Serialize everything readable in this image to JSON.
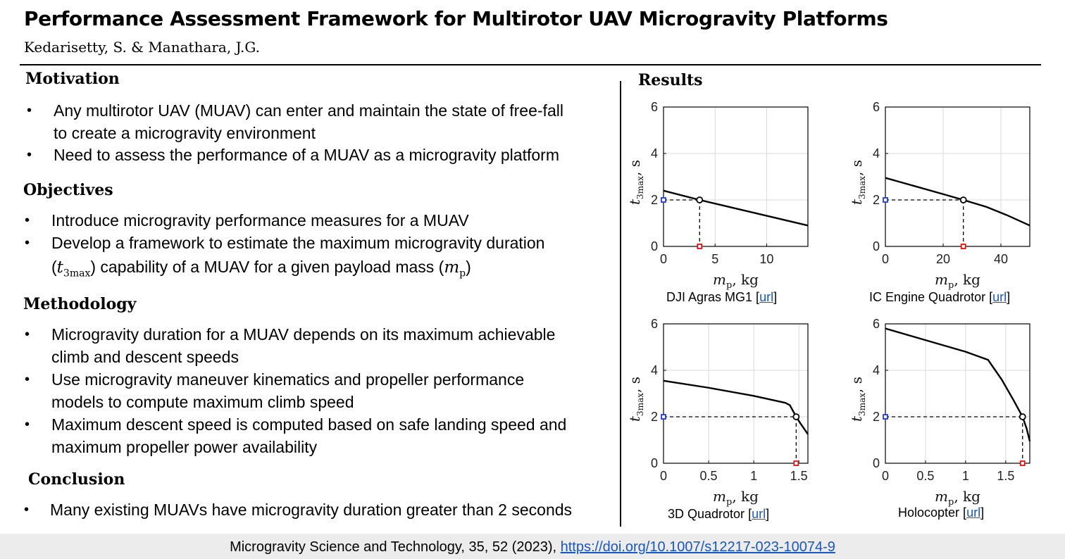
{
  "header": {
    "title": "Performance Assessment Framework for Multirotor UAV Microgravity Platforms",
    "authors": "Kedarisetty, S. & Manathara, J.G."
  },
  "motivation": {
    "heading": "Motivation",
    "bullets": [
      {
        "line1": "Any multirotor UAV (MUAV) can enter and maintain the state of free-fall",
        "line2": "to create a microgravity environment"
      },
      {
        "line1": "Need to assess the performance of a MUAV as a microgravity platform"
      }
    ]
  },
  "objectives": {
    "heading": "Objectives",
    "bullets": [
      {
        "line1": "Introduce microgravity performance measures for a MUAV"
      },
      {
        "line1": "Develop a framework to estimate the maximum microgravity duration",
        "line2_a": " capability of a MUAV for a given payload mass (",
        "line2_b": ")"
      }
    ]
  },
  "methodology": {
    "heading": "Methodology",
    "bullets": [
      {
        "line1": "Microgravity duration for a MUAV depends on its maximum achievable",
        "line2": "climb and descent speeds"
      },
      {
        "line1": "Use microgravity maneuver kinematics and propeller performance",
        "line2": "models to compute maximum climb speed"
      },
      {
        "line1": "Maximum descent speed is computed based on safe landing speed and",
        "line2": "maximum propeller power availability"
      }
    ]
  },
  "conclusion": {
    "heading": "Conclusion",
    "bullets": [
      {
        "line1": "Many existing MUAVs have microgravity duration greater than 2 seconds"
      }
    ]
  },
  "results": {
    "heading": "Results"
  },
  "bullet_glyph": "•",
  "math": {
    "t_sym": "t",
    "t_sub": "3max",
    "m_sym": "m",
    "m_sub": "p"
  },
  "chart_data": [
    {
      "type": "line",
      "caption": "DJI Agras MG1",
      "link_text": "url",
      "xlabel": "mp, kg",
      "ylabel": "t3max, s",
      "xlim": [
        0,
        14
      ],
      "ylim": [
        0,
        6
      ],
      "xticks": [
        0,
        5,
        10
      ],
      "yticks": [
        0,
        2,
        4,
        6
      ],
      "x": [
        0,
        3.5,
        14
      ],
      "y": [
        2.4,
        2.0,
        0.9
      ],
      "marker_x": 3.5,
      "marker_y": 2.0,
      "grid": true
    },
    {
      "type": "line",
      "caption": "IC Engine Quadrotor",
      "link_text": "url",
      "xlabel": "mp, kg",
      "ylabel": "t3max, s",
      "xlim": [
        0,
        50
      ],
      "ylim": [
        0,
        6
      ],
      "xticks": [
        0,
        20,
        40
      ],
      "yticks": [
        0,
        2,
        4,
        6
      ],
      "x": [
        0,
        10,
        20,
        27,
        35,
        42,
        50
      ],
      "y": [
        2.95,
        2.6,
        2.25,
        2.0,
        1.7,
        1.35,
        0.9
      ],
      "marker_x": 27,
      "marker_y": 2.0,
      "grid": true
    },
    {
      "type": "line",
      "caption": "3D Quadrotor",
      "link_text": "url",
      "xlabel": "mp, kg",
      "ylabel": "t3max, s",
      "xlim": [
        0,
        1.6
      ],
      "ylim": [
        0,
        6
      ],
      "xticks": [
        0,
        0.5,
        1,
        1.5
      ],
      "yticks": [
        0,
        2,
        4,
        6
      ],
      "x": [
        0,
        0.5,
        1.0,
        1.35,
        1.4,
        1.47,
        1.52,
        1.6
      ],
      "y": [
        3.55,
        3.25,
        2.9,
        2.6,
        2.5,
        2.0,
        1.7,
        1.25
      ],
      "marker_x": 1.47,
      "marker_y": 2.0,
      "grid": true
    },
    {
      "type": "line",
      "caption": "Holocopter",
      "link_text": "url",
      "xlabel": "mp, kg",
      "ylabel": "t3max, s",
      "xlim": [
        0,
        1.8
      ],
      "ylim": [
        0,
        6
      ],
      "xticks": [
        0,
        0.5,
        1,
        1.5
      ],
      "yticks": [
        0,
        2,
        4,
        6
      ],
      "x": [
        0,
        0.5,
        1.0,
        1.28,
        1.45,
        1.6,
        1.71,
        1.76,
        1.8
      ],
      "y": [
        5.8,
        5.3,
        4.8,
        4.45,
        3.6,
        2.7,
        2.0,
        1.5,
        0.95
      ],
      "marker_x": 1.71,
      "marker_y": 2.0,
      "grid": true
    }
  ],
  "footer": {
    "citation": "Microgravity Science and Technology, 35, 52 (2023), ",
    "doi": "https://doi.org/10.1007/s12217-023-10074-9"
  },
  "colors": {
    "marker_blue": "#1f3bd6",
    "marker_red": "#e01010",
    "link": "#1a56c4",
    "footer_bg": "#ececec",
    "grid": "#d9d9d9"
  }
}
